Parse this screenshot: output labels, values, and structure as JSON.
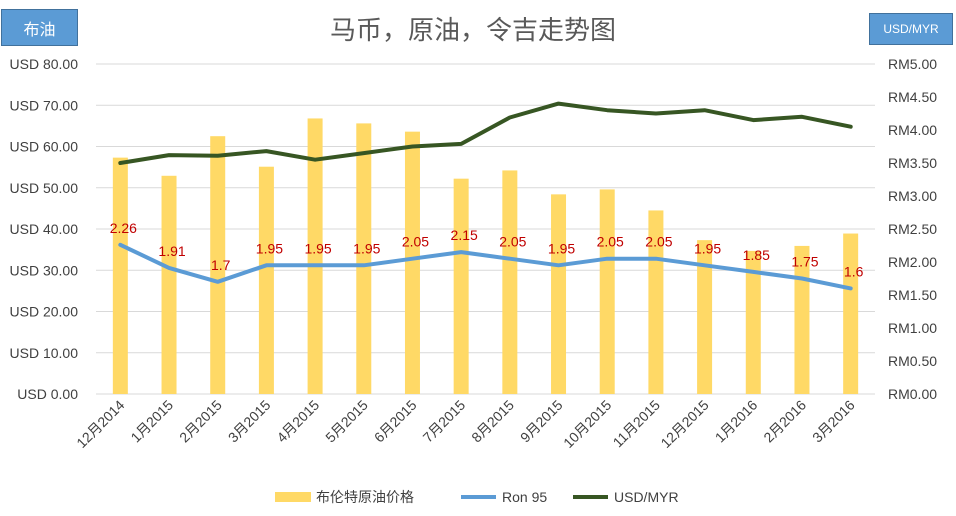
{
  "tags": {
    "left": "布油",
    "right": "USD/MYR"
  },
  "chart_data": {
    "type": "bar",
    "title": "马币，原油，令吉走势图",
    "categories": [
      "12月2014",
      "1月2015",
      "2月2015",
      "3月2015",
      "4月2015",
      "5月2015",
      "6月2015",
      "7月2015",
      "8月2015",
      "9月2015",
      "10月2015",
      "11月2015",
      "12月2015",
      "1月2016",
      "2月2016",
      "3月2016"
    ],
    "y_left": {
      "min": 0,
      "max": 80,
      "step": 10,
      "ticks": [
        "USD 0.00",
        "USD 10.00",
        "USD 20.00",
        "USD 30.00",
        "USD 40.00",
        "USD 50.00",
        "USD 60.00",
        "USD 70.00",
        "USD 80.00"
      ]
    },
    "y_right": {
      "min": 0,
      "max": 5,
      "step": 0.5,
      "ticks": [
        "RM0.00",
        "RM0.50",
        "RM1.00",
        "RM1.50",
        "RM2.00",
        "RM2.50",
        "RM3.00",
        "RM3.50",
        "RM4.00",
        "RM4.50",
        "RM5.00"
      ]
    },
    "gridlines": true,
    "legend_position": "bottom",
    "series": [
      {
        "name": "布伦特原油价格",
        "type": "bar",
        "axis": "left",
        "color": "#ffd966",
        "values": [
          57.3,
          52.9,
          62.5,
          55.1,
          66.8,
          65.6,
          63.6,
          52.2,
          54.2,
          48.4,
          49.6,
          44.5,
          37.3,
          34.7,
          35.9,
          38.9
        ]
      },
      {
        "name": "Ron 95",
        "type": "line",
        "axis": "right",
        "color": "#5b9bd5",
        "values": [
          2.26,
          1.91,
          1.7,
          1.95,
          1.95,
          1.95,
          2.05,
          2.15,
          2.05,
          1.95,
          2.05,
          2.05,
          1.95,
          1.85,
          1.75,
          1.6
        ],
        "labels": [
          "2.26",
          "1.91",
          "1.7",
          "1.95",
          "1.95",
          "1.95",
          "2.05",
          "2.15",
          "2.05",
          "1.95",
          "2.05",
          "2.05",
          "1.95",
          "1.85",
          "1.75",
          "1.6"
        ]
      },
      {
        "name": "USD/MYR",
        "type": "line",
        "axis": "right",
        "color": "#375623",
        "values": [
          3.5,
          3.62,
          3.61,
          3.68,
          3.55,
          3.65,
          3.75,
          3.79,
          4.19,
          4.4,
          4.3,
          4.25,
          4.3,
          4.15,
          4.2,
          4.05
        ]
      }
    ]
  }
}
